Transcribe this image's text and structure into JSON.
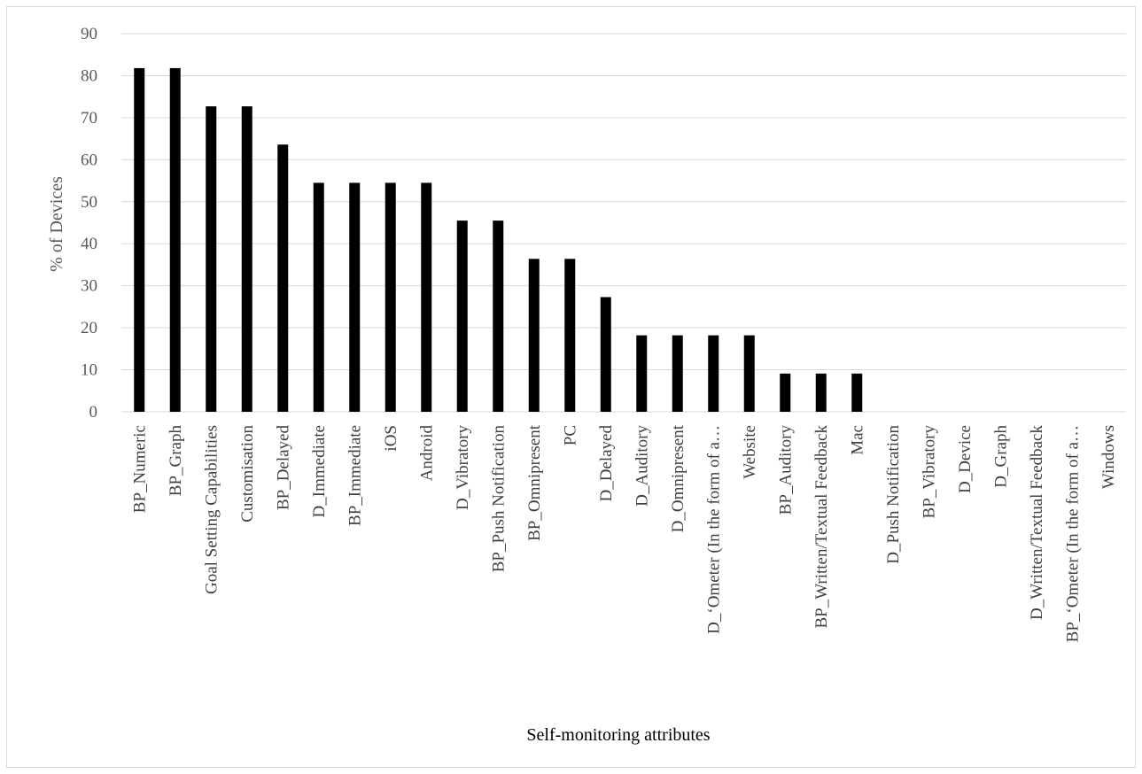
{
  "chart_data": {
    "type": "bar",
    "title": "",
    "xlabel": "Self-monitoring  attributes",
    "ylabel": "% of Devices",
    "ylim": [
      0,
      90
    ],
    "yticks": [
      0,
      10,
      20,
      30,
      40,
      50,
      60,
      70,
      80,
      90
    ],
    "grid": true,
    "legend": "none",
    "bar_color": "#000000",
    "categories": [
      "BP_Numeric",
      "BP_Graph",
      "Goal Setting Capabilities",
      "Customisation",
      "BP_Delayed",
      "D_Immediate",
      "BP_Immediate",
      "iOS",
      "Android",
      "D_Vibratory",
      "BP_Push Notification",
      "BP_Omnipresent",
      "PC",
      "D_Delayed",
      "D_Auditory",
      "D_Omnipresent",
      "D_‘Ometer (In the form of a…",
      "Website",
      "BP_Auditory",
      "BP_Written/Textual Feedback",
      "Mac",
      "D_Push Notification",
      "BP_Vibratory",
      "D_Device",
      "D_Graph",
      "D_Written/Textual Feedback",
      "BP_‘Ometer (In the form of a…",
      "Windows"
    ],
    "values": [
      81.8,
      81.8,
      72.7,
      72.7,
      63.6,
      54.5,
      54.5,
      54.5,
      54.5,
      45.5,
      45.5,
      36.4,
      36.4,
      27.3,
      18.2,
      18.2,
      18.2,
      18.2,
      9.1,
      9.1,
      9.1,
      0,
      0,
      0,
      0,
      0,
      0,
      0
    ]
  }
}
